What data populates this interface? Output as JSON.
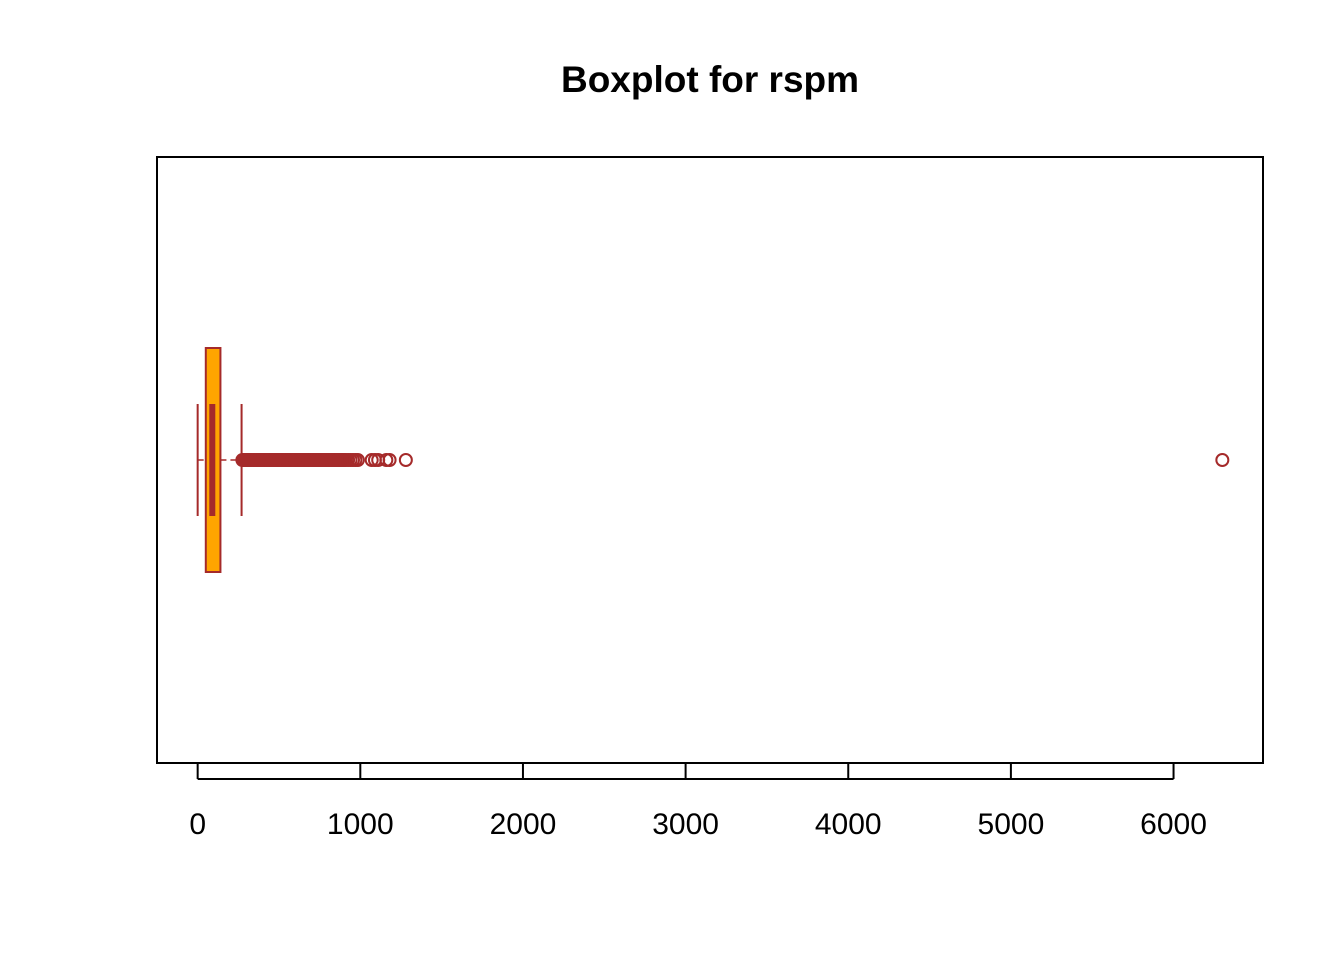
{
  "chart_data": {
    "type": "boxplot",
    "orientation": "horizontal",
    "title": "Boxplot for rspm",
    "xlabel": "",
    "ylabel": "",
    "xlim": [
      -250,
      6550
    ],
    "x_ticks": [
      0,
      1000,
      2000,
      3000,
      4000,
      5000,
      6000
    ],
    "x_tick_labels": [
      "0",
      "1000",
      "2000",
      "3000",
      "4000",
      "5000",
      "6000"
    ],
    "grid": false,
    "legend": "none",
    "box": {
      "whisker_low": 0,
      "q1": 50,
      "median": 90,
      "q3": 140,
      "whisker_high": 270
    },
    "outliers": [
      275,
      280,
      290,
      300,
      310,
      320,
      330,
      340,
      350,
      360,
      370,
      380,
      390,
      400,
      410,
      420,
      430,
      440,
      450,
      460,
      470,
      480,
      490,
      500,
      510,
      520,
      530,
      540,
      550,
      560,
      570,
      580,
      590,
      600,
      610,
      620,
      630,
      640,
      650,
      660,
      670,
      680,
      690,
      700,
      710,
      720,
      730,
      740,
      750,
      760,
      770,
      780,
      790,
      800,
      810,
      820,
      830,
      840,
      850,
      860,
      870,
      880,
      890,
      900,
      910,
      925,
      940,
      955,
      970,
      985,
      1070,
      1090,
      1110,
      1160,
      1180,
      1280,
      6300
    ],
    "colors": {
      "box_fill": "#FFA500",
      "border": "#A52A2A",
      "axis": "#000000"
    }
  }
}
